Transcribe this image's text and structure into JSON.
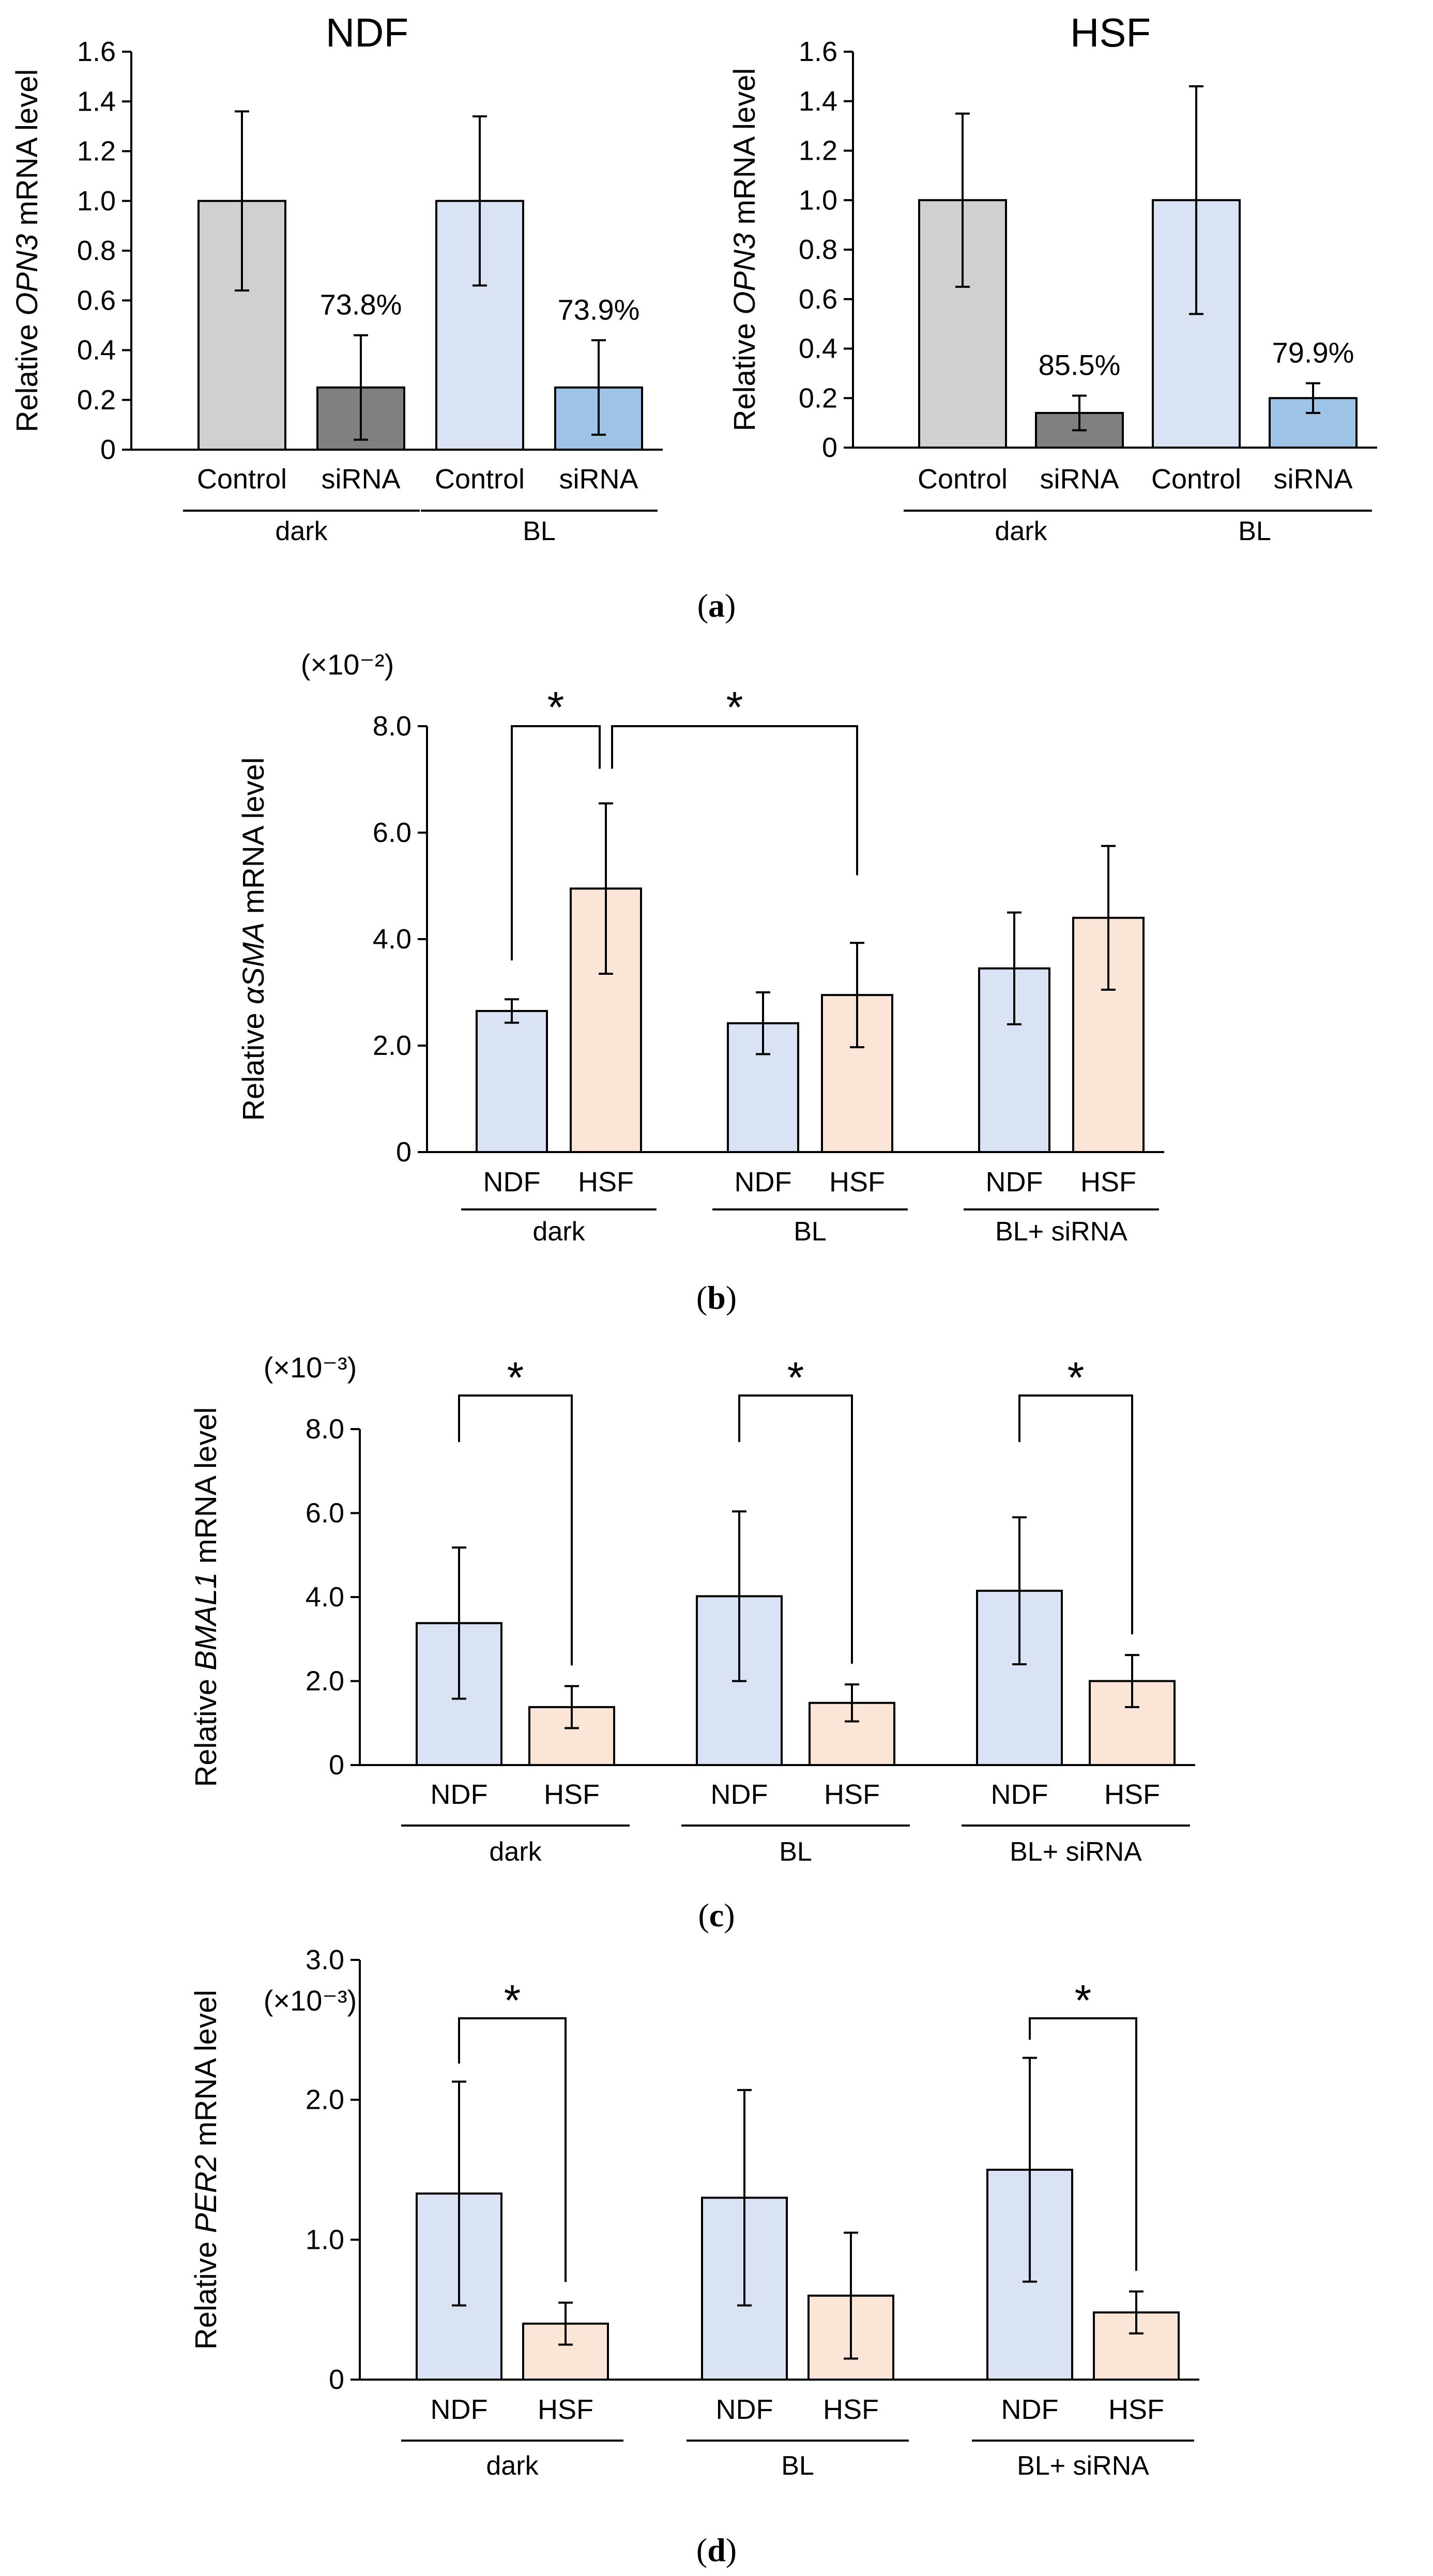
{
  "colors": {
    "control_dark": "#d0d0d0",
    "sirna_dark": "#808080",
    "control_bl": "#dae3f3",
    "sirna_bl": "#9dc3e6",
    "ndf": "#dae3f3",
    "hsf": "#fbe5d6",
    "stroke": "#000000"
  },
  "panels": [
    {
      "label": "(a)",
      "label_parts": {
        "open": "(",
        "letter": "a",
        "close": ")"
      },
      "charts": [
        {
          "type": "bar",
          "title": "NDF",
          "ylabel_parts": [
            "Relative ",
            "OPN3",
            " mRNA level"
          ],
          "ylim": [
            0,
            1.6
          ],
          "yticks": [
            "0",
            "0.2",
            "0.4",
            "0.6",
            "0.8",
            "1.0",
            "1.2",
            "1.4",
            "1.6"
          ],
          "ytick_values": [
            0,
            0.2,
            0.4,
            0.6,
            0.8,
            1.0,
            1.2,
            1.4,
            1.6
          ],
          "categories": [
            "Control",
            "siRNA",
            "Control",
            "siRNA"
          ],
          "groups": [
            "dark",
            "BL"
          ],
          "values": [
            1.0,
            0.25,
            1.0,
            0.25
          ],
          "errors": [
            0.36,
            0.21,
            0.34,
            0.19
          ],
          "fills": [
            "control_dark",
            "sirna_dark",
            "control_bl",
            "sirna_bl"
          ],
          "bar_annotations": [
            "",
            "73.8%",
            "",
            "73.9%"
          ]
        },
        {
          "type": "bar",
          "title": "HSF",
          "ylabel_parts": [
            "Relative ",
            "OPN3",
            " mRNA level"
          ],
          "ylim": [
            0,
            1.6
          ],
          "yticks": [
            "0",
            "0.2",
            "0.4",
            "0.6",
            "0.8",
            "1.0",
            "1.2",
            "1.4",
            "1.6"
          ],
          "ytick_values": [
            0,
            0.2,
            0.4,
            0.6,
            0.8,
            1.0,
            1.2,
            1.4,
            1.6
          ],
          "categories": [
            "Control",
            "siRNA",
            "Control",
            "siRNA"
          ],
          "groups": [
            "dark",
            "BL"
          ],
          "values": [
            1.0,
            0.14,
            1.0,
            0.2
          ],
          "errors": [
            0.35,
            0.07,
            0.46,
            0.06
          ],
          "fills": [
            "control_dark",
            "sirna_dark",
            "control_bl",
            "sirna_bl"
          ],
          "bar_annotations": [
            "",
            "85.5%",
            "",
            "79.9%"
          ]
        }
      ]
    },
    {
      "label": "(b)",
      "label_parts": {
        "open": "(",
        "letter": "b",
        "close": ")"
      },
      "charts": [
        {
          "type": "bar",
          "scale_note": "(×10⁻²)",
          "ylabel_parts": [
            "Relative ",
            "αSMA",
            " mRNA level"
          ],
          "ylim": [
            0,
            8.0
          ],
          "yticks": [
            "0",
            "2.0",
            "4.0",
            "6.0",
            "8.0"
          ],
          "ytick_values": [
            0,
            2,
            4,
            6,
            8
          ],
          "categories": [
            "NDF",
            "HSF",
            "NDF",
            "HSF",
            "NDF",
            "HSF"
          ],
          "groups": [
            "dark",
            "BL",
            "BL+ siRNA"
          ],
          "values": [
            2.65,
            4.95,
            2.42,
            2.95,
            3.45,
            4.4
          ],
          "errors": [
            0.22,
            1.6,
            0.58,
            0.98,
            1.05,
            1.35
          ],
          "fills": [
            "ndf",
            "hsf",
            "ndf",
            "hsf",
            "ndf",
            "hsf"
          ],
          "significance": [
            {
              "from": 0,
              "to": 1,
              "label": "*",
              "level": 8.0
            },
            {
              "from": 1,
              "to": 3,
              "label": "*",
              "level": 8.0
            }
          ]
        }
      ]
    },
    {
      "label": "(c)",
      "label_parts": {
        "open": "(",
        "letter": "c",
        "close": ")"
      },
      "charts": [
        {
          "type": "bar",
          "scale_note": "(×10⁻³)",
          "ylabel_parts": [
            "Relative ",
            "BMAL1",
            " mRNA level"
          ],
          "ylim": [
            0,
            8.0
          ],
          "yticks": [
            "0",
            "2.0",
            "4.0",
            "6.0",
            "8.0"
          ],
          "ytick_values": [
            0,
            2,
            4,
            6,
            8
          ],
          "categories": [
            "NDF",
            "HSF",
            "NDF",
            "HSF",
            "NDF",
            "HSF"
          ],
          "groups": [
            "dark",
            "BL",
            "BL+ siRNA"
          ],
          "values": [
            3.38,
            1.38,
            4.02,
            1.48,
            4.15,
            2.0
          ],
          "errors": [
            1.8,
            0.5,
            2.02,
            0.44,
            1.75,
            0.62
          ],
          "fills": [
            "ndf",
            "hsf",
            "ndf",
            "hsf",
            "ndf",
            "hsf"
          ],
          "significance": [
            {
              "from": 0,
              "to": 1,
              "label": "*",
              "level": 8.5
            },
            {
              "from": 2,
              "to": 3,
              "label": "*",
              "level": 8.5
            },
            {
              "from": 4,
              "to": 5,
              "label": "*",
              "level": 8.5
            }
          ]
        }
      ]
    },
    {
      "label": "(d)",
      "label_parts": {
        "open": "(",
        "letter": "d",
        "close": ")"
      },
      "charts": [
        {
          "type": "bar",
          "scale_note": "(×10⁻³)",
          "ylabel_parts": [
            "Relative ",
            "PER2",
            " mRNA level"
          ],
          "ylim": [
            0,
            3.0
          ],
          "yticks": [
            "0",
            "1.0",
            "2.0",
            "3.0"
          ],
          "ytick_values": [
            0,
            1,
            2,
            3
          ],
          "categories": [
            "NDF",
            "HSF",
            "NDF",
            "HSF",
            "NDF",
            "HSF"
          ],
          "groups": [
            "dark",
            "BL",
            "BL+ siRNA"
          ],
          "values": [
            1.33,
            0.4,
            1.3,
            0.6,
            1.5,
            0.48
          ],
          "errors": [
            0.8,
            0.15,
            0.77,
            0.45,
            0.8,
            0.15
          ],
          "fills": [
            "ndf",
            "hsf",
            "ndf",
            "hsf",
            "ndf",
            "hsf"
          ],
          "significance": [
            {
              "from": 0,
              "to": 1,
              "label": "*",
              "level": 3.2
            },
            {
              "from": 4,
              "to": 5,
              "label": "*",
              "level": 3.2
            }
          ]
        }
      ]
    }
  ]
}
